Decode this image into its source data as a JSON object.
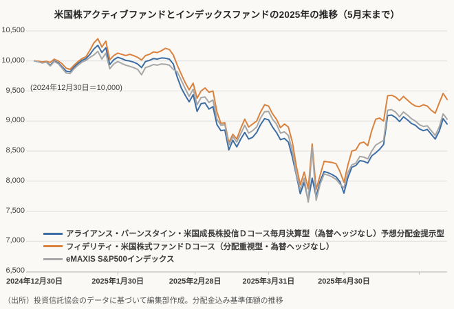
{
  "page": {
    "background": "#faf9f6"
  },
  "chart_data": {
    "type": "line",
    "title": "米国株アクティブファンドとインデックスファンドの2025年の推移（5月末まで）",
    "note": "(2024年12月30日＝10,000)",
    "source": "（出所）投資信託協会のデータに基づいて編集部作成。分配金込み基準価額の推移",
    "baseline_value": 10000,
    "ylim": [
      6500,
      10500
    ],
    "y_ticks": [
      10500,
      10000,
      9500,
      9000,
      8500,
      8000,
      7500,
      7000,
      6500
    ],
    "y_tick_labels": [
      "10,500",
      "10,000",
      "9,500",
      "9,000",
      "8,500",
      "8,000",
      "7,500",
      "7,000",
      "6,500"
    ],
    "x_tick_labels": [
      "2024年12月30日",
      "2025年1月30日",
      "2025年2月28日",
      "2025年3月31日",
      "2025年4月30日"
    ],
    "x_label_days": [
      0,
      21,
      40.5,
      59,
      78
    ],
    "x_tickmark_days": [
      21,
      40.5,
      59,
      78,
      97
    ],
    "grid": true,
    "legend_position": "inside-lower-left",
    "axis_color": "#c0c0bd",
    "grid_color": "#dddddb",
    "series": [
      {
        "id": "alliance",
        "name": "アライアンス・バーンスタイン・米国成長株投信Ｄコース毎月決算型（為替ヘッジなし）予想分配金提示型",
        "color": "#3c6da4",
        "values": [
          10000,
          9990,
          9970,
          9985,
          9930,
          10000,
          9970,
          9900,
          9830,
          9820,
          9900,
          9960,
          10010,
          10040,
          10110,
          10200,
          10260,
          10140,
          10220,
          9940,
          10020,
          10060,
          10040,
          10010,
          10000,
          9980,
          9950,
          9890,
          9990,
          10010,
          10040,
          10030,
          10050,
          10045,
          10030,
          9950,
          9730,
          9550,
          9430,
          9320,
          9440,
          9160,
          9290,
          9300,
          9200,
          9240,
          8940,
          8840,
          8850,
          8520,
          8680,
          8570,
          8700,
          8810,
          8700,
          8730,
          8810,
          8940,
          9040,
          9020,
          8900,
          8810,
          8690,
          8710,
          8650,
          8400,
          8100,
          7790,
          7980,
          7670,
          8050,
          7740,
          8000,
          8160,
          8140,
          8110,
          8070,
          7990,
          7800,
          8060,
          8230,
          8260,
          8340,
          8330,
          8300,
          8420,
          8470,
          8530,
          8610,
          9090,
          9100,
          9060,
          8990,
          9070,
          9020,
          8960,
          8930,
          8870,
          8840,
          8860,
          8780,
          8700,
          8830,
          9040,
          8950
        ]
      },
      {
        "id": "fidelity",
        "name": "フィデリティ・米国株式ファンドＤコース（分配重視型・為替ヘッジなし）",
        "color": "#d9813d",
        "values": [
          10000,
          9995,
          9985,
          9995,
          9975,
          10030,
          10000,
          9950,
          9880,
          9860,
          9930,
          9990,
          10040,
          10070,
          10180,
          10300,
          10370,
          10230,
          10330,
          10020,
          10090,
          10130,
          10110,
          10090,
          10110,
          10090,
          10060,
          10015,
          10090,
          10110,
          10150,
          10140,
          10170,
          10210,
          10190,
          10100,
          9930,
          9780,
          9640,
          9520,
          9630,
          9380,
          9500,
          9550,
          9480,
          9500,
          9150,
          8960,
          8970,
          8640,
          8780,
          8700,
          8880,
          9030,
          8900,
          8950,
          9000,
          9150,
          9270,
          9250,
          9120,
          9030,
          8890,
          8950,
          8900,
          8650,
          8250,
          7940,
          8150,
          7870,
          8620,
          7860,
          8100,
          8330,
          8320,
          8310,
          8290,
          8160,
          7980,
          8270,
          8500,
          8520,
          8630,
          8650,
          8590,
          8840,
          9030,
          9050,
          9000,
          9420,
          9430,
          9400,
          9340,
          9410,
          9350,
          9290,
          9250,
          9240,
          9270,
          9250,
          9180,
          9130,
          9300,
          9460,
          9360
        ]
      },
      {
        "id": "emaxis",
        "name": "eMAXIS S&P500インデックス",
        "color": "#a6a6a6",
        "values": [
          10000,
          9985,
          9965,
          9980,
          9915,
          9990,
          9955,
          9880,
          9800,
          9790,
          9870,
          9930,
          9980,
          10010,
          10060,
          10100,
          10160,
          10030,
          10130,
          9870,
          9950,
          9990,
          9960,
          9930,
          9910,
          9890,
          9860,
          9770,
          9890,
          9910,
          9940,
          9930,
          9950,
          9945,
          9930,
          9860,
          9820,
          9680,
          9540,
          9410,
          9530,
          9270,
          9390,
          9400,
          9310,
          9350,
          9030,
          8930,
          8940,
          8600,
          8740,
          8650,
          8790,
          8930,
          8800,
          8840,
          8900,
          9050,
          9155,
          9160,
          9030,
          8950,
          8800,
          8820,
          8760,
          8500,
          8120,
          7860,
          8050,
          7650,
          8570,
          7680,
          7950,
          8120,
          8100,
          8070,
          8030,
          7950,
          7890,
          8140,
          8270,
          8300,
          8410,
          8400,
          8370,
          8500,
          8600,
          8640,
          8680,
          9180,
          9190,
          9150,
          9070,
          9150,
          9100,
          9040,
          9000,
          8940,
          8910,
          8920,
          8840,
          8760,
          8900,
          9120,
          9030
        ]
      }
    ]
  }
}
